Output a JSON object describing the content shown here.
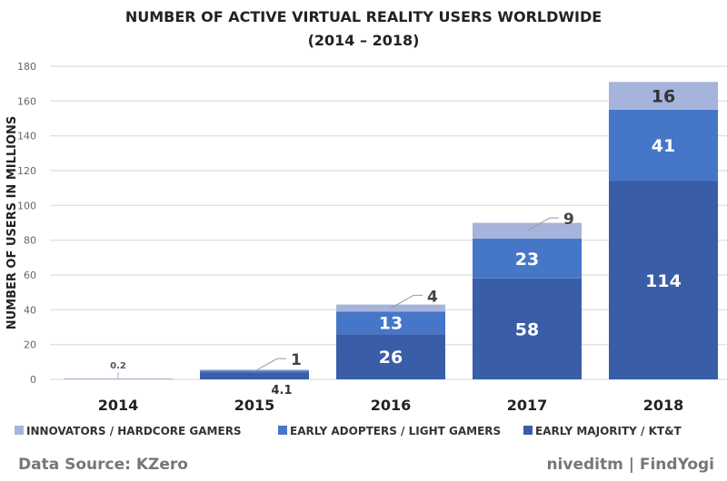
{
  "chart_data": {
    "type": "bar",
    "stacked": true,
    "title": "NUMBER OF ACTIVE VIRTUAL REALITY USERS WORLDWIDE",
    "subtitle": "(2014 – 2018)",
    "xlabel": "",
    "ylabel": "NUMBER OF USERS IN MILLIONS",
    "ylim": [
      0,
      180
    ],
    "yticks": [
      0,
      20,
      40,
      60,
      80,
      100,
      120,
      140,
      160,
      180
    ],
    "grid": true,
    "legend_position": "bottom",
    "categories": [
      "2014",
      "2015",
      "2016",
      "2017",
      "2018"
    ],
    "series": [
      {
        "name": "EARLY MAJORITY / KT&T",
        "color": "#3a5da8",
        "values": [
          0.2,
          4.1,
          26,
          58,
          114
        ],
        "labels": [
          "0.2",
          "4.1",
          "26",
          "58",
          "114"
        ]
      },
      {
        "name": "EARLY ADOPTERS / LIGHT GAMERS",
        "color": "#4676c8",
        "values": [
          0,
          1,
          13,
          23,
          41
        ],
        "labels": [
          "",
          "1",
          "13",
          "23",
          "41"
        ]
      },
      {
        "name": "INNOVATORS / HARDCORE GAMERS",
        "color": "#a6b4dc",
        "values": [
          0,
          0.5,
          4,
          9,
          16
        ],
        "labels": [
          "",
          "",
          "4",
          "9",
          "16"
        ]
      }
    ]
  },
  "footer": {
    "source": "Data Source: KZero",
    "credit": "niveditm | FindYogi"
  }
}
